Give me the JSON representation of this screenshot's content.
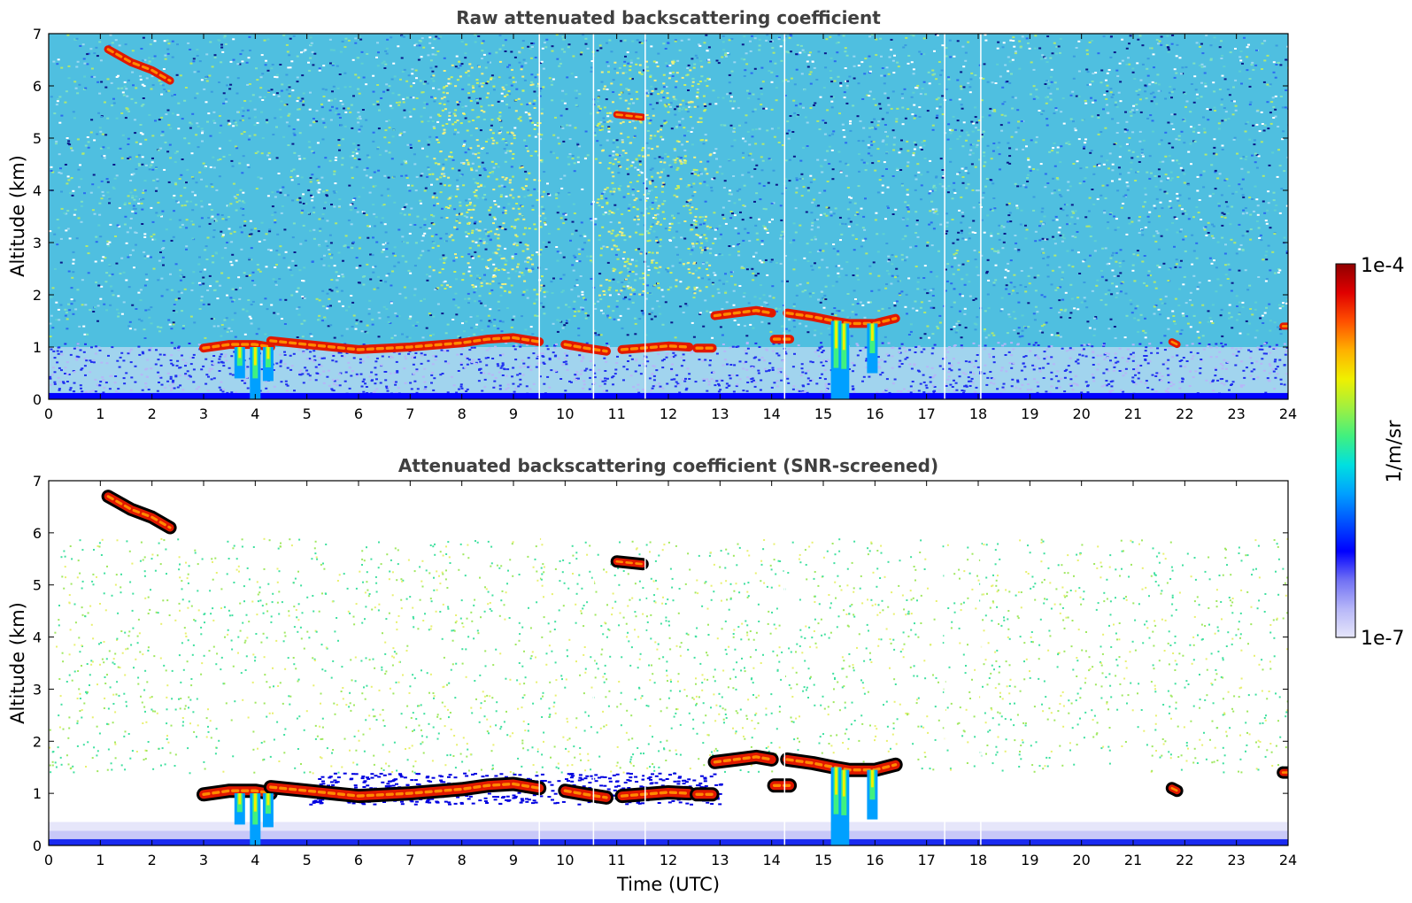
{
  "chart_data": [
    {
      "type": "heatmap",
      "title": "Raw attenuated backscattering coefficient",
      "xlabel": "",
      "ylabel": "Altitude (km)",
      "xlim": [
        0,
        24
      ],
      "ylim": [
        0,
        7
      ],
      "xticks": [
        0,
        1,
        2,
        3,
        4,
        5,
        6,
        7,
        8,
        9,
        10,
        11,
        12,
        13,
        14,
        15,
        16,
        17,
        18,
        19,
        20,
        21,
        22,
        23,
        24
      ],
      "yticks": [
        0,
        1,
        2,
        3,
        4,
        5,
        6,
        7
      ],
      "clouds": [
        {
          "kind": "layer",
          "x": [
            3.0,
            3.5,
            4.0,
            4.3
          ],
          "y": [
            0.98,
            1.05,
            1.05,
            1.0
          ]
        },
        {
          "kind": "layer",
          "x": [
            4.3,
            5.0,
            6.0,
            7.0,
            8.0,
            8.5,
            9.0,
            9.5
          ],
          "y": [
            1.12,
            1.05,
            0.95,
            1.0,
            1.08,
            1.15,
            1.18,
            1.1
          ]
        },
        {
          "kind": "layer",
          "x": [
            10.0,
            10.4,
            10.8
          ],
          "y": [
            1.05,
            0.98,
            0.92
          ]
        },
        {
          "kind": "layer",
          "x": [
            11.1,
            11.5,
            12.0,
            12.4
          ],
          "y": [
            0.95,
            0.98,
            1.02,
            1.0
          ]
        },
        {
          "kind": "layer",
          "x": [
            12.55,
            12.85
          ],
          "y": [
            0.98,
            0.98
          ]
        },
        {
          "kind": "layer",
          "x": [
            12.9,
            13.3,
            13.7,
            14.0
          ],
          "y": [
            1.6,
            1.65,
            1.7,
            1.65
          ]
        },
        {
          "kind": "layer",
          "x": [
            14.3,
            14.8,
            15.2,
            15.5,
            16.0,
            16.4
          ],
          "y": [
            1.65,
            1.58,
            1.5,
            1.45,
            1.45,
            1.55
          ]
        },
        {
          "kind": "layer",
          "x": [
            14.05,
            14.35
          ],
          "y": [
            1.15,
            1.15
          ]
        },
        {
          "kind": "cirrus",
          "x": [
            1.15,
            1.6,
            2.0,
            2.35
          ],
          "y": [
            6.7,
            6.45,
            6.3,
            6.1
          ]
        },
        {
          "kind": "patch",
          "x": [
            11.0,
            11.5
          ],
          "y": [
            5.45,
            5.4
          ]
        },
        {
          "kind": "patch",
          "x": [
            21.75,
            21.85
          ],
          "y": [
            1.1,
            1.05
          ]
        },
        {
          "kind": "patch",
          "x": [
            23.9,
            24.0
          ],
          "y": [
            1.4,
            1.4
          ]
        }
      ],
      "precipitation": [
        {
          "x": 3.7,
          "top": 1.0,
          "bottom": 0.4
        },
        {
          "x": 4.0,
          "top": 1.0,
          "bottom": 0.0
        },
        {
          "x": 4.25,
          "top": 1.0,
          "bottom": 0.35
        },
        {
          "x": 15.25,
          "top": 1.5,
          "bottom": 0.0
        },
        {
          "x": 15.4,
          "top": 1.45,
          "bottom": 0.0
        },
        {
          "x": 15.95,
          "top": 1.45,
          "bottom": 0.5
        }
      ],
      "data_gaps_x": [
        9.5,
        10.55,
        11.55,
        14.25,
        17.35,
        18.05
      ]
    },
    {
      "type": "heatmap",
      "title": "Attenuated backscattering coefficient (SNR-screened)",
      "xlabel": "Time (UTC)",
      "ylabel": "Altitude (km)",
      "xlim": [
        0,
        24
      ],
      "ylim": [
        0,
        7
      ],
      "xticks": [
        0,
        1,
        2,
        3,
        4,
        5,
        6,
        7,
        8,
        9,
        10,
        11,
        12,
        13,
        14,
        15,
        16,
        17,
        18,
        19,
        20,
        21,
        22,
        23,
        24
      ],
      "yticks": [
        0,
        1,
        2,
        3,
        4,
        5,
        6,
        7
      ],
      "data_gaps_x": [
        9.5,
        10.55,
        11.55,
        14.25,
        17.35,
        18.05
      ]
    }
  ],
  "colorbar": {
    "label": "1/m/sr",
    "max_label": "1e-4",
    "min_label": "1e-7",
    "scale": "log",
    "colors": [
      "#e6e6fa",
      "#b6b6f8",
      "#7070f4",
      "#0000ff",
      "#0050ff",
      "#00a0ff",
      "#00e0e0",
      "#40f080",
      "#a0f040",
      "#f0f000",
      "#ffb000",
      "#ff5000",
      "#e00000",
      "#900000"
    ]
  }
}
